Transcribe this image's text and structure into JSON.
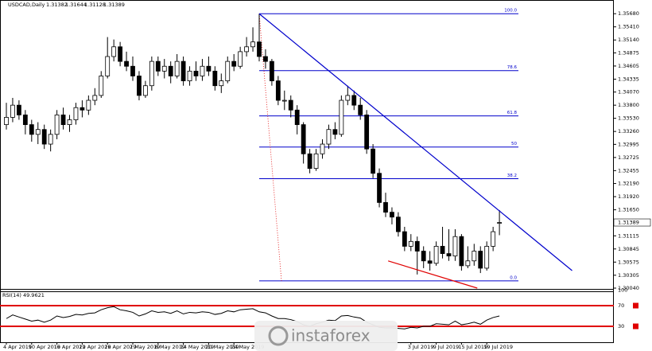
{
  "chart_data": {
    "type": "candlestick",
    "symbol": "USDCAD,Daily",
    "categories": [
      "4 Apr 2019",
      null,
      null,
      null,
      "10 Apr 2019",
      null,
      null,
      null,
      "16 Apr 2019",
      null,
      null,
      null,
      "22 Apr 2019",
      null,
      null,
      null,
      "26 Apr 2019",
      null,
      null,
      null,
      "2 May 2019",
      null,
      null,
      null,
      "8 May 2019",
      null,
      null,
      null,
      "14 May 2019",
      null,
      null,
      null,
      "20 May 2019",
      null,
      null,
      null,
      "24 May 2019",
      null,
      null,
      null,
      null,
      null,
      null,
      null,
      null,
      null,
      null,
      null,
      null,
      null,
      null,
      null,
      null,
      null,
      null,
      null,
      null,
      null,
      null,
      null,
      null,
      null,
      null,
      null,
      "3 Jul 2019",
      null,
      null,
      null,
      "9 Jul 2019",
      null,
      null,
      null,
      "15 Jul 2019",
      null,
      null,
      null,
      "19 Jul 2019",
      null,
      null
    ],
    "ohlc": [
      [
        1.334,
        1.3385,
        1.333,
        1.3355
      ],
      [
        1.3355,
        1.3395,
        1.3345,
        1.338
      ],
      [
        1.338,
        1.339,
        1.335,
        1.336
      ],
      [
        1.336,
        1.337,
        1.332,
        1.334
      ],
      [
        1.334,
        1.335,
        1.3305,
        1.332
      ],
      [
        1.332,
        1.3345,
        1.33,
        1.333
      ],
      [
        1.333,
        1.334,
        1.329,
        1.33
      ],
      [
        1.33,
        1.333,
        1.3285,
        1.332
      ],
      [
        1.332,
        1.337,
        1.331,
        1.336
      ],
      [
        1.336,
        1.3375,
        1.333,
        1.334
      ],
      [
        1.334,
        1.336,
        1.3325,
        1.335
      ],
      [
        1.335,
        1.3385,
        1.334,
        1.3375
      ],
      [
        1.3375,
        1.339,
        1.3355,
        1.337
      ],
      [
        1.337,
        1.34,
        1.336,
        1.339
      ],
      [
        1.339,
        1.3415,
        1.338,
        1.34
      ],
      [
        1.34,
        1.345,
        1.3395,
        1.344
      ],
      [
        1.344,
        1.352,
        1.3435,
        1.348
      ],
      [
        1.348,
        1.3515,
        1.347,
        1.35
      ],
      [
        1.35,
        1.351,
        1.346,
        1.347
      ],
      [
        1.347,
        1.349,
        1.345,
        1.346
      ],
      [
        1.346,
        1.348,
        1.343,
        1.344
      ],
      [
        1.344,
        1.345,
        1.339,
        1.34
      ],
      [
        1.34,
        1.343,
        1.3395,
        1.342
      ],
      [
        1.342,
        1.348,
        1.341,
        1.347
      ],
      [
        1.347,
        1.348,
        1.344,
        1.345
      ],
      [
        1.345,
        1.3475,
        1.3435,
        1.346
      ],
      [
        1.346,
        1.347,
        1.3425,
        1.344
      ],
      [
        1.344,
        1.3485,
        1.3435,
        1.347
      ],
      [
        1.347,
        1.348,
        1.342,
        1.343
      ],
      [
        1.343,
        1.346,
        1.342,
        1.345
      ],
      [
        1.345,
        1.347,
        1.343,
        1.344
      ],
      [
        1.344,
        1.3475,
        1.343,
        1.346
      ],
      [
        1.346,
        1.348,
        1.344,
        1.345
      ],
      [
        1.345,
        1.346,
        1.341,
        1.342
      ],
      [
        1.342,
        1.3445,
        1.3405,
        1.343
      ],
      [
        1.343,
        1.348,
        1.3425,
        1.347
      ],
      [
        1.347,
        1.3485,
        1.345,
        1.346
      ],
      [
        1.346,
        1.35,
        1.3455,
        1.349
      ],
      [
        1.349,
        1.352,
        1.348,
        1.35
      ],
      [
        1.35,
        1.354,
        1.349,
        1.351
      ],
      [
        1.351,
        1.3568,
        1.347,
        1.348
      ],
      [
        1.348,
        1.3495,
        1.3455,
        1.347
      ],
      [
        1.347,
        1.3475,
        1.342,
        1.343
      ],
      [
        1.343,
        1.344,
        1.338,
        1.339
      ],
      [
        1.339,
        1.341,
        1.337,
        1.339
      ],
      [
        1.339,
        1.34,
        1.3355,
        1.337
      ],
      [
        1.337,
        1.338,
        1.332,
        1.334
      ],
      [
        1.334,
        1.3345,
        1.326,
        1.328
      ],
      [
        1.328,
        1.329,
        1.324,
        1.325
      ],
      [
        1.325,
        1.329,
        1.3245,
        1.328
      ],
      [
        1.328,
        1.331,
        1.327,
        1.33
      ],
      [
        1.33,
        1.334,
        1.329,
        1.333
      ],
      [
        1.333,
        1.3345,
        1.331,
        1.332
      ],
      [
        1.332,
        1.34,
        1.3315,
        1.339
      ],
      [
        1.339,
        1.342,
        1.338,
        1.34
      ],
      [
        1.34,
        1.341,
        1.337,
        1.338
      ],
      [
        1.338,
        1.3395,
        1.335,
        1.336
      ],
      [
        1.336,
        1.337,
        1.328,
        1.329
      ],
      [
        1.329,
        1.33,
        1.323,
        1.324
      ],
      [
        1.324,
        1.325,
        1.317,
        1.318
      ],
      [
        1.318,
        1.32,
        1.315,
        1.316
      ],
      [
        1.316,
        1.317,
        1.3135,
        1.315
      ],
      [
        1.315,
        1.316,
        1.311,
        1.312
      ],
      [
        1.312,
        1.313,
        1.308,
        1.309
      ],
      [
        1.309,
        1.3115,
        1.308,
        1.31
      ],
      [
        1.31,
        1.311,
        1.3032,
        1.308
      ],
      [
        1.308,
        1.309,
        1.3045,
        1.306
      ],
      [
        1.306,
        1.308,
        1.304,
        1.3055
      ],
      [
        1.3055,
        1.31,
        1.305,
        1.309
      ],
      [
        1.309,
        1.313,
        1.3065,
        1.3075
      ],
      [
        1.3075,
        1.3125,
        1.306,
        1.307
      ],
      [
        1.307,
        1.3125,
        1.306,
        1.311
      ],
      [
        1.311,
        1.3115,
        1.304,
        1.305
      ],
      [
        1.305,
        1.309,
        1.3045,
        1.306
      ],
      [
        1.306,
        1.3095,
        1.305,
        1.308
      ],
      [
        1.308,
        1.309,
        1.3035,
        1.3045
      ],
      [
        1.3045,
        1.31,
        1.304,
        1.309
      ],
      [
        1.309,
        1.313,
        1.308,
        1.312
      ],
      [
        1.31382,
        1.31644,
        1.31128,
        1.31389
      ]
    ],
    "ylim": [
      1.3004,
      1.3588
    ],
    "yticks": [
      {
        "value": 1.3568,
        "label": "1.35680"
      },
      {
        "value": 1.3541,
        "label": "1.35410"
      },
      {
        "value": 1.3514,
        "label": "1.35140"
      },
      {
        "value": 1.34875,
        "label": "1.34875"
      },
      {
        "value": 1.34605,
        "label": "1.34605"
      },
      {
        "value": 1.34335,
        "label": "1.34335"
      },
      {
        "value": 1.3407,
        "label": "1.34070"
      },
      {
        "value": 1.338,
        "label": "1.33800"
      },
      {
        "value": 1.3353,
        "label": "1.33530"
      },
      {
        "value": 1.3326,
        "label": "1.33260"
      },
      {
        "value": 1.32995,
        "label": "1.32995"
      },
      {
        "value": 1.32725,
        "label": "1.32725"
      },
      {
        "value": 1.32455,
        "label": "1.32455"
      },
      {
        "value": 1.3219,
        "label": "1.32190"
      },
      {
        "value": 1.3192,
        "label": "1.31920"
      },
      {
        "value": 1.3165,
        "label": "1.31650"
      },
      {
        "value": 1.31115,
        "label": "1.31115"
      },
      {
        "value": 1.30845,
        "label": "1.30845"
      },
      {
        "value": 1.30575,
        "label": "1.30575"
      },
      {
        "value": 1.30305,
        "label": "1.30305"
      },
      {
        "value": 1.3004,
        "label": "1.30040"
      }
    ],
    "fib_start_index": 40,
    "fib_levels": [
      {
        "label": "100.0",
        "price": 1.3568
      },
      {
        "label": "78.6",
        "price": 1.3451
      },
      {
        "label": "61.8",
        "price": 1.3358
      },
      {
        "label": "50",
        "price": 1.3294
      },
      {
        "label": "38.2",
        "price": 1.3229
      },
      {
        "label": "0.0",
        "price": 1.3019
      }
    ],
    "fib_color": "#0000cc",
    "trendline": {
      "color": "#0000cc",
      "points": [
        {
          "index": 40,
          "price": 1.3568
        },
        {
          "index": 89.5,
          "price": 1.304
        }
      ]
    },
    "support_line": {
      "color": "#e00000",
      "points": [
        {
          "index": 60.4,
          "price": 1.306
        },
        {
          "index": 74.5,
          "price": 1.3004
        }
      ]
    },
    "rsi": {
      "label": "RSI(14) 49.9621",
      "ylim": [
        0,
        100
      ],
      "yticks": [
        30,
        70,
        100
      ],
      "levels": [
        30,
        70
      ],
      "level_color": "#e00000",
      "values": [
        45,
        52,
        48,
        44,
        40,
        42,
        38,
        42,
        50,
        47,
        49,
        53,
        52,
        55,
        56,
        62,
        66,
        68,
        62,
        60,
        57,
        50,
        54,
        60,
        57,
        58,
        55,
        60,
        54,
        57,
        56,
        58,
        57,
        53,
        55,
        60,
        58,
        62,
        63,
        64,
        58,
        56,
        50,
        45,
        45,
        43,
        39,
        33,
        30,
        35,
        38,
        42,
        41,
        50,
        51,
        48,
        46,
        38,
        33,
        28,
        27,
        27,
        26,
        25,
        28,
        27,
        30,
        30,
        35,
        34,
        33,
        40,
        33,
        35,
        38,
        34,
        42,
        47,
        49.9621
      ]
    },
    "watermark": "instaforex"
  }
}
